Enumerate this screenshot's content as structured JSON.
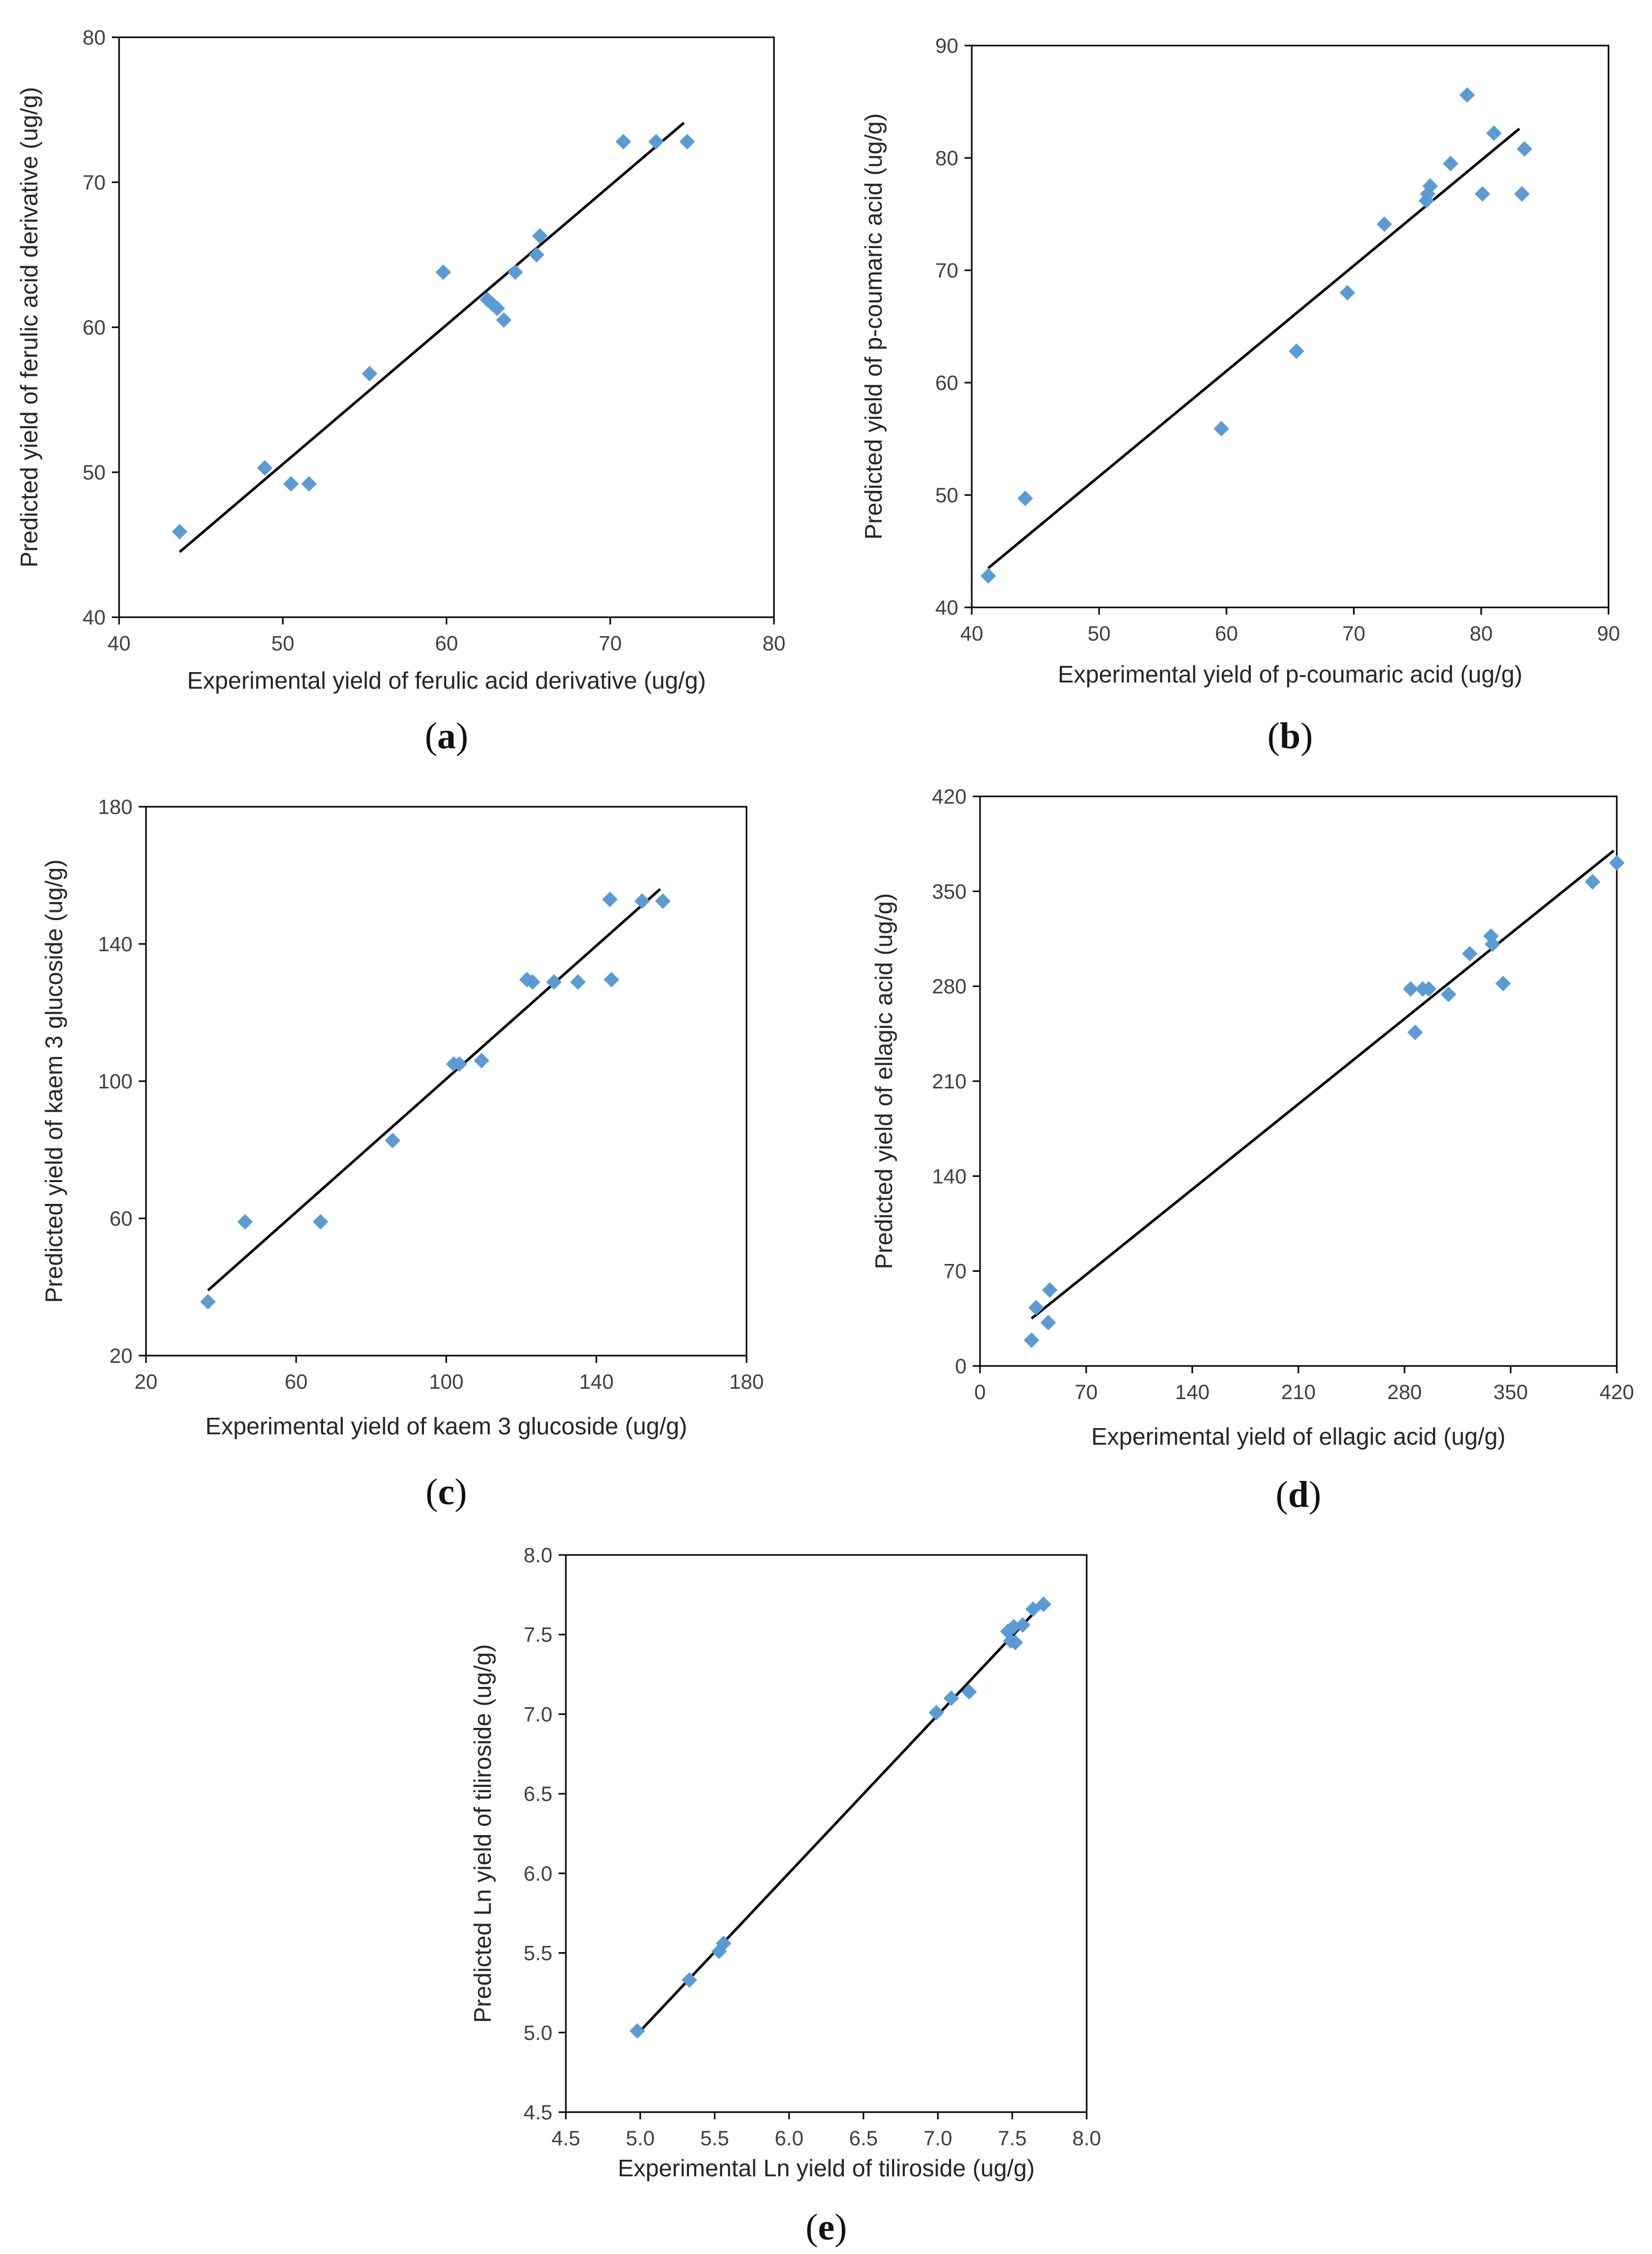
{
  "figure": {
    "colors": {
      "marker": "#5b9bd5",
      "line": "#000000",
      "axis": "#000000"
    }
  },
  "chart_data": [
    {
      "id": "a",
      "type": "scatter",
      "caption": "a",
      "xlabel": "Experimental yield of ferulic acid derivative (ug/g)",
      "ylabel": "Predicted yield of ferulic acid derivative (ug/g)",
      "xlim": [
        40,
        80
      ],
      "ylim": [
        40,
        80
      ],
      "xticks": [
        "40",
        "50",
        "60",
        "70",
        "80"
      ],
      "yticks": [
        "40",
        "50",
        "60",
        "70",
        "80"
      ],
      "points": {
        "x": [
          43.7,
          48.9,
          50.5,
          51.6,
          55.3,
          59.8,
          62.5,
          62.8,
          63.1,
          63.5,
          64.2,
          65.5,
          65.7,
          70.8,
          72.8,
          74.7
        ],
        "y": [
          45.9,
          50.3,
          49.2,
          49.2,
          56.8,
          63.8,
          61.9,
          61.6,
          61.3,
          60.5,
          63.8,
          65.0,
          66.3,
          72.8,
          72.8,
          72.8
        ]
      },
      "fit_line": {
        "x": [
          43.7,
          74.5
        ],
        "y": [
          44.5,
          74.1
        ]
      }
    },
    {
      "id": "b",
      "type": "scatter",
      "caption": "b",
      "xlabel": "Experimental yield of p-coumaric acid (ug/g)",
      "ylabel": "Predicted yield of p-coumaric acid (ug/g)",
      "xlim": [
        40,
        90
      ],
      "ylim": [
        40,
        90
      ],
      "xticks": [
        "40",
        "50",
        "60",
        "70",
        "80",
        "90"
      ],
      "yticks": [
        "40",
        "50",
        "60",
        "70",
        "80",
        "90"
      ],
      "points": {
        "x": [
          41.3,
          44.2,
          59.6,
          65.5,
          69.5,
          72.4,
          75.7,
          75.8,
          76.0,
          77.6,
          78.9,
          80.1,
          81.0,
          83.2,
          83.4
        ],
        "y": [
          42.8,
          49.7,
          55.9,
          62.8,
          68.0,
          74.1,
          76.2,
          76.8,
          77.5,
          79.5,
          85.6,
          76.8,
          82.2,
          76.8,
          80.8
        ]
      },
      "fit_line": {
        "x": [
          41.3,
          83.0
        ],
        "y": [
          43.5,
          82.6
        ]
      }
    },
    {
      "id": "c",
      "type": "scatter",
      "caption": "c",
      "xlabel": "Experimental yield of kaem 3 glucoside (ug/g)",
      "ylabel": "Predicted yield of kaem 3 glucoside (ug/g)",
      "xlim": [
        20,
        180
      ],
      "ylim": [
        20,
        180
      ],
      "xticks": [
        "20",
        "60",
        "100",
        "140",
        "180"
      ],
      "yticks": [
        "20",
        "60",
        "100",
        "140",
        "180"
      ],
      "points": {
        "x": [
          36.5,
          46.4,
          66.5,
          85.7,
          102.0,
          103.5,
          109.4,
          121.5,
          123.0,
          128.7,
          135.1,
          143.6,
          144.0,
          152.2,
          157.7
        ],
        "y": [
          35.7,
          59.0,
          59.0,
          82.7,
          105.0,
          105.0,
          106.0,
          129.6,
          128.9,
          128.9,
          128.9,
          153.0,
          129.6,
          152.5,
          152.5
        ]
      },
      "fit_line": {
        "x": [
          36.5,
          157.0
        ],
        "y": [
          39.0,
          156.0
        ]
      }
    },
    {
      "id": "d",
      "type": "scatter",
      "caption": "d",
      "xlabel": "Experimental yield of ellagic acid (ug/g)",
      "ylabel": "Predicted  yield of ellagic acid (ug/g)",
      "xlim": [
        0,
        420
      ],
      "ylim": [
        0,
        420
      ],
      "xticks": [
        "0",
        "70",
        "140",
        "210",
        "280",
        "350",
        "420"
      ],
      "yticks": [
        "0",
        "70",
        "140",
        "210",
        "280",
        "350",
        "420"
      ],
      "points": {
        "x": [
          34.0,
          37.0,
          45.0,
          46.0,
          284.0,
          287.0,
          292.0,
          296.0,
          309.0,
          323.0,
          337.0,
          338.0,
          345.0,
          404.0,
          420.0
        ],
        "y": [
          19.0,
          43.0,
          32.0,
          56.0,
          278.0,
          246.0,
          278.0,
          278.0,
          274.0,
          304.0,
          317.0,
          311.0,
          282.0,
          357.0,
          371.0
        ]
      },
      "fit_line": {
        "x": [
          34.0,
          418.0
        ],
        "y": [
          35.0,
          380.0
        ]
      }
    },
    {
      "id": "e",
      "type": "scatter",
      "caption": "e",
      "xlabel": "Experimental Ln yield of tiliroside (ug/g)",
      "ylabel": "Predicted Ln yield of tiliroside (ug/g)",
      "xlim": [
        4.5,
        8.0
      ],
      "ylim": [
        4.5,
        8.0
      ],
      "xticks": [
        "4.5",
        "5.0",
        "5.5",
        "6.0",
        "6.5",
        "7.0",
        "7.5",
        "8.0"
      ],
      "yticks": [
        "4.5",
        "5.0",
        "5.5",
        "6.0",
        "6.5",
        "7.0",
        "7.5",
        "8.0"
      ],
      "points": {
        "x": [
          4.98,
          5.33,
          5.53,
          5.56,
          6.99,
          7.09,
          7.21,
          7.47,
          7.49,
          7.51,
          7.52,
          7.57,
          7.64,
          7.71
        ],
        "y": [
          5.01,
          5.33,
          5.51,
          5.56,
          7.01,
          7.1,
          7.14,
          7.52,
          7.46,
          7.55,
          7.45,
          7.56,
          7.66,
          7.69
        ]
      },
      "fit_line": {
        "x": [
          4.97,
          7.71
        ],
        "y": [
          4.98,
          7.7
        ]
      }
    }
  ]
}
